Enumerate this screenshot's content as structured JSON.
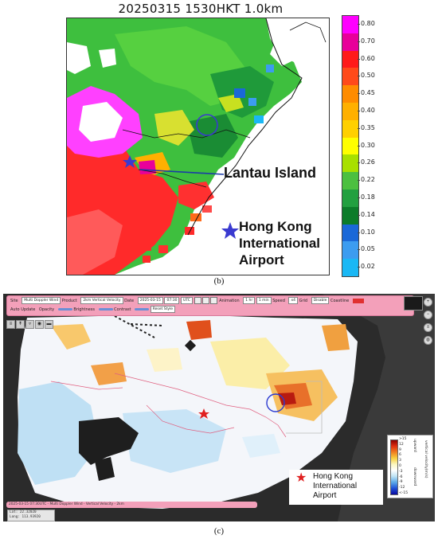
{
  "panel_b": {
    "title": "20250315 1530HKT 1.0km",
    "caption": "(b)",
    "callouts": {
      "lantau": "Lantau Island",
      "hkia_lines": [
        "Hong Kong",
        "International",
        "Airport"
      ]
    },
    "marker_color": "#3a3ad0",
    "colorbar": {
      "labels": [
        "0.80",
        "0.70",
        "0.60",
        "0.50",
        "0.45",
        "0.40",
        "0.35",
        "0.30",
        "0.26",
        "0.22",
        "0.18",
        "0.14",
        "0.10",
        "0.05",
        "0.02"
      ],
      "colors": [
        "#ff00ff",
        "#e8009a",
        "#ff1a1a",
        "#ff4a1a",
        "#ff8c00",
        "#ffb000",
        "#ffd000",
        "#ffff00",
        "#a8e000",
        "#4cc040",
        "#22a040",
        "#0c7c2a",
        "#1a68d8",
        "#3c9cf0",
        "#1ab8f5"
      ]
    }
  },
  "panel_c": {
    "caption": "(c)",
    "toolbar": {
      "site_label": "Site",
      "site_value": "Multi Doppler Wind",
      "product_label": "Product",
      "product_value": "2km Vertical Velocity",
      "date_label": "Date",
      "date_value": "2025-03-15",
      "time_value": "07:30",
      "tz_value": "UTC",
      "animation_label": "Animation",
      "animation_values": [
        "1 hr",
        "1 min"
      ],
      "speed_label": "Speed",
      "speed_value": "x4",
      "grid_label": "Grid",
      "grid_value": "Disable",
      "coastline_label": "Coastline",
      "auto_update_label": "Auto Update",
      "opacity_label": "Opacity",
      "brightness_label": "Brightness",
      "contrast_label": "Contrast",
      "reset_label": "Reset Style"
    },
    "legend": {
      "labels": [
        ">15",
        "12",
        "9",
        "6",
        "3",
        "0",
        "-3",
        "-6",
        "-9",
        "-12",
        "<-15"
      ],
      "upward": "upward",
      "downward": "downward",
      "title": "vertical velocity(m/s)"
    },
    "hkia_lines": [
      "Hong Kong",
      "International",
      "Airport"
    ],
    "hkia_star_color": "#e02020",
    "status_text": "2025-03-15 07:30UTC - Multi Doppler Wind - Vertical Velocity - 2km",
    "coords": {
      "lat": "Lat: 22.32020",
      "long": "Long: 113.93920"
    }
  }
}
